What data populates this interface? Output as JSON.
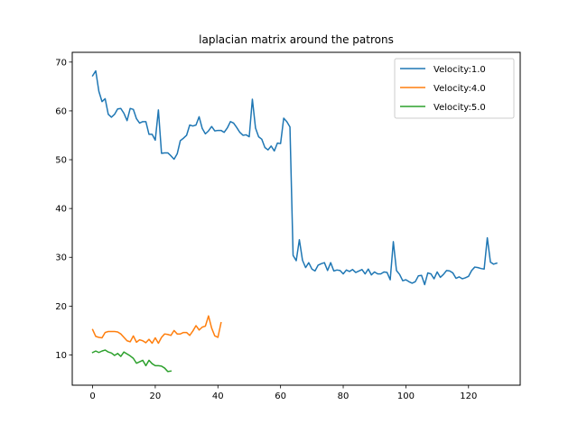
{
  "chart_data": {
    "type": "line",
    "title": "laplacian matrix around the patrons",
    "xlabel": "",
    "ylabel": "",
    "xlim": [
      -6.5,
      136.5
    ],
    "ylim": [
      3.8,
      72.0
    ],
    "xticks": [
      0,
      20,
      40,
      60,
      80,
      100,
      120
    ],
    "yticks": [
      10,
      20,
      30,
      40,
      50,
      60,
      70
    ],
    "grid": false,
    "legend_position": "upper right",
    "series": [
      {
        "name": "Velocity:1.0",
        "color": "#1f77b4",
        "x_start": 0,
        "values": [
          67.2,
          68.2,
          64.0,
          61.9,
          62.5,
          59.3,
          58.7,
          59.3,
          60.4,
          60.5,
          59.5,
          58.0,
          60.5,
          60.3,
          58.4,
          57.5,
          57.8,
          57.8,
          55.2,
          55.2,
          54.0,
          60.2,
          51.3,
          51.4,
          51.4,
          50.8,
          50.1,
          51.2,
          53.9,
          54.4,
          55.0,
          57.1,
          56.9,
          57.1,
          58.8,
          56.4,
          55.3,
          55.9,
          56.8,
          55.9,
          56.0,
          56.0,
          55.6,
          56.5,
          57.8,
          57.5,
          56.6,
          55.6,
          55.0,
          55.1,
          54.7,
          62.4,
          56.5,
          54.7,
          54.2,
          52.5,
          52.0,
          52.8,
          51.8,
          53.4,
          53.3,
          58.5,
          57.8,
          56.7,
          30.4,
          29.3,
          33.6,
          29.4,
          27.9,
          28.9,
          27.6,
          27.2,
          28.4,
          28.7,
          28.9,
          27.3,
          28.9,
          27.2,
          27.4,
          27.3,
          26.6,
          27.4,
          27.1,
          27.5,
          26.9,
          27.2,
          27.5,
          26.6,
          27.6,
          26.4,
          27.0,
          26.6,
          26.6,
          27.0,
          26.9,
          25.4,
          33.2,
          27.3,
          26.5,
          25.2,
          25.4,
          25.0,
          24.7,
          25.0,
          26.2,
          26.3,
          24.4,
          26.8,
          26.6,
          25.6,
          27.0,
          25.9,
          26.5,
          27.3,
          27.2,
          26.8,
          25.7,
          26.0,
          25.6,
          25.8,
          26.1,
          27.3,
          28.0,
          27.9,
          27.7,
          27.6,
          34.0,
          29.0,
          28.6,
          28.8
        ]
      },
      {
        "name": "Velocity:4.0",
        "color": "#ff7f0e",
        "x_start": 0,
        "values": [
          15.2,
          13.8,
          13.6,
          13.5,
          14.6,
          14.8,
          14.8,
          14.8,
          14.7,
          14.3,
          13.6,
          12.9,
          12.7,
          13.9,
          12.6,
          13.1,
          12.9,
          12.5,
          13.2,
          12.4,
          13.5,
          12.4,
          13.6,
          14.3,
          14.2,
          14.0,
          15.0,
          14.3,
          14.3,
          14.6,
          14.6,
          14.0,
          14.9,
          16.0,
          15.1,
          15.7,
          15.9,
          18.0,
          15.5,
          13.9,
          13.6,
          16.6
        ]
      },
      {
        "name": "Velocity:5.0",
        "color": "#2ca02c",
        "x_start": 0,
        "values": [
          10.5,
          10.8,
          10.5,
          10.8,
          11.0,
          10.6,
          10.4,
          9.9,
          10.3,
          9.7,
          10.6,
          10.2,
          9.8,
          9.3,
          8.3,
          8.6,
          8.9,
          7.8,
          8.9,
          8.2,
          7.8,
          7.8,
          7.7,
          7.3,
          6.6,
          6.7
        ]
      }
    ]
  }
}
